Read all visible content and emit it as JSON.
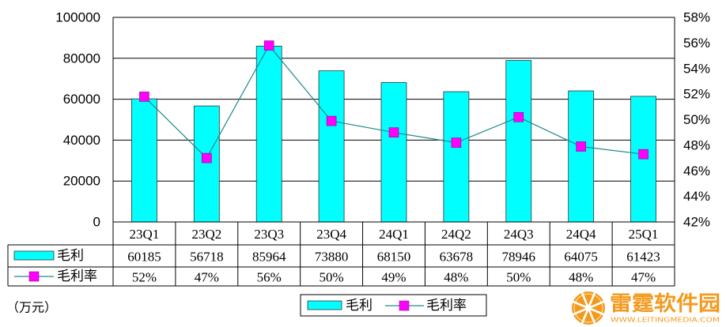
{
  "chart_data": {
    "type": "bar",
    "categories": [
      "23Q1",
      "23Q2",
      "23Q3",
      "23Q4",
      "24Q1",
      "24Q2",
      "24Q3",
      "24Q4",
      "25Q1"
    ],
    "series": [
      {
        "name": "毛利",
        "type": "bar",
        "axis": "left",
        "color": "#00FFFF",
        "values": [
          60185,
          56718,
          85964,
          73880,
          68150,
          63678,
          78946,
          64075,
          61423
        ]
      },
      {
        "name": "毛利率",
        "type": "line",
        "axis": "right",
        "color": "#1E8A8A",
        "marker_color": "#FF00FF",
        "values": [
          51.8,
          47.0,
          55.8,
          49.9,
          49.0,
          48.2,
          50.2,
          47.9,
          47.3
        ],
        "labels": [
          "52%",
          "47%",
          "56%",
          "50%",
          "49%",
          "48%",
          "50%",
          "48%",
          "47%"
        ]
      }
    ],
    "ylim": [
      0,
      100000
    ],
    "ytick_labels": [
      "0",
      "20000",
      "40000",
      "60000",
      "80000",
      "100000"
    ],
    "y2lim": [
      42,
      58
    ],
    "y2tick_labels": [
      "42%",
      "44%",
      "46%",
      "48%",
      "50%",
      "52%",
      "54%",
      "56%",
      "58%"
    ],
    "grid": true,
    "data_table": true,
    "legend": "bottom-center",
    "unit_label": "（万元）"
  },
  "watermark": {
    "title": "雷霆软件园",
    "url": "WWW.LEITINGMEDIA.COM",
    "color": "#F39A1E"
  }
}
